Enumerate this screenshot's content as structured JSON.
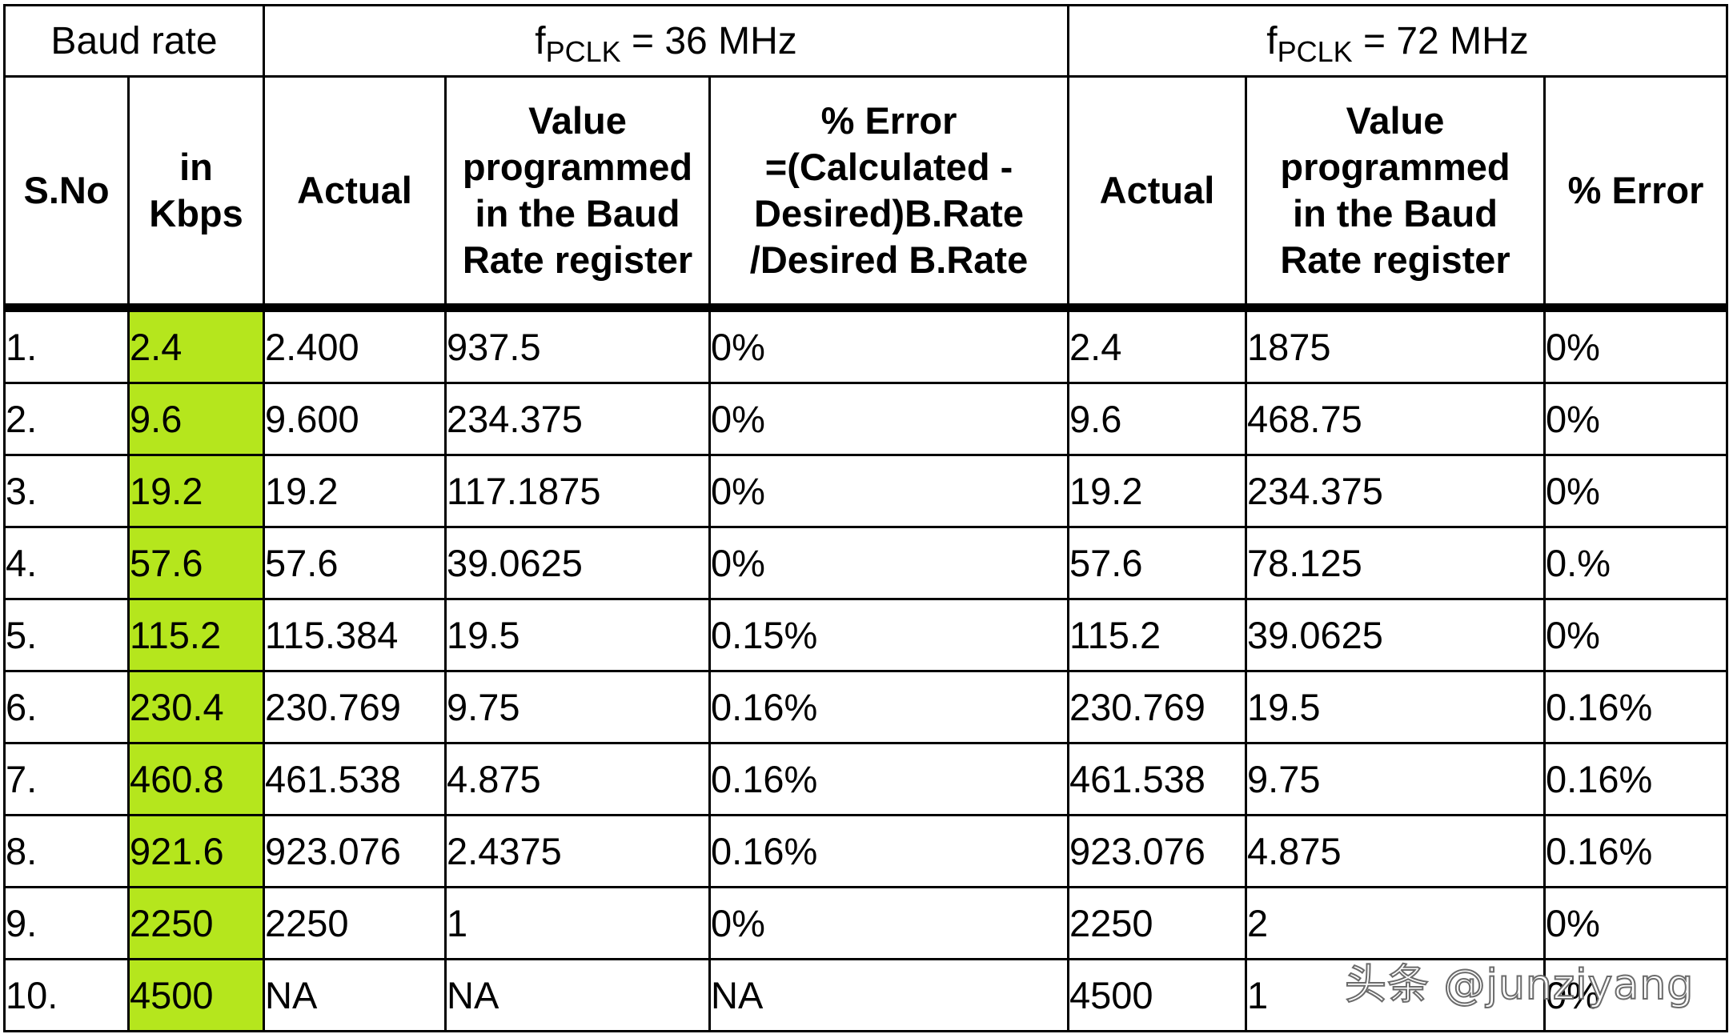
{
  "group_headers": {
    "baud_rate": "Baud rate",
    "f36_prefix": "f",
    "f36_sub": "PCLK",
    "f36_suffix": " = 36 MHz",
    "f72_prefix": "f",
    "f72_sub": "PCLK",
    "f72_suffix": " = 72 MHz"
  },
  "column_headers": {
    "sno": "S.No",
    "kbps_line1": "in",
    "kbps_line2": "Kbps",
    "actual36": "Actual",
    "value36_line1": "Value",
    "value36_line2": "programmed",
    "value36_line3": "in the Baud",
    "value36_line4": "Rate register",
    "error36_line1": "% Error",
    "error36_line2": "=(Calculated -",
    "error36_line3": "Desired)B.Rate",
    "error36_line4": "/Desired B.Rate",
    "actual72": "Actual",
    "value72_line1": "Value",
    "value72_line2": "programmed",
    "value72_line3": "in the Baud",
    "value72_line4": "Rate register",
    "error72": "% Error"
  },
  "rows": [
    {
      "sno": "1.",
      "kbps": "2.4",
      "actual36": "2.400",
      "value36": "937.5",
      "error36": "0%",
      "actual72": "2.4",
      "value72": "1875",
      "error72": "0%"
    },
    {
      "sno": "2.",
      "kbps": "9.6",
      "actual36": "9.600",
      "value36": "234.375",
      "error36": "0%",
      "actual72": "9.6",
      "value72": "468.75",
      "error72": "0%"
    },
    {
      "sno": "3.",
      "kbps": "19.2",
      "actual36": "19.2",
      "value36": "117.1875",
      "error36": "0%",
      "actual72": "19.2",
      "value72": "234.375",
      "error72": "0%"
    },
    {
      "sno": "4.",
      "kbps": "57.6",
      "actual36": "57.6",
      "value36": "39.0625",
      "error36": "0%",
      "actual72": "57.6",
      "value72": "78.125",
      "error72": "0.%"
    },
    {
      "sno": "5.",
      "kbps": "115.2",
      "actual36": "115.384",
      "value36": "19.5",
      "error36": "0.15%",
      "actual72": "115.2",
      "value72": "39.0625",
      "error72": "0%"
    },
    {
      "sno": "6.",
      "kbps": "230.4",
      "actual36": "230.769",
      "value36": "9.75",
      "error36": "0.16%",
      "actual72": "230.769",
      "value72": "19.5",
      "error72": "0.16%"
    },
    {
      "sno": "7.",
      "kbps": "460.8",
      "actual36": "461.538",
      "value36": "4.875",
      "error36": "0.16%",
      "actual72": "461.538",
      "value72": "9.75",
      "error72": "0.16%"
    },
    {
      "sno": "8.",
      "kbps": "921.6",
      "actual36": "923.076",
      "value36": "2.4375",
      "error36": "0.16%",
      "actual72": "923.076",
      "value72": "4.875",
      "error72": "0.16%"
    },
    {
      "sno": "9.",
      "kbps": "2250",
      "actual36": "2250",
      "value36": "1",
      "error36": "0%",
      "actual72": "2250",
      "value72": "2",
      "error72": "0%"
    },
    {
      "sno": "10.",
      "kbps": "4500",
      "actual36": "NA",
      "value36": "NA",
      "error36": "NA",
      "actual72": "4500",
      "value72": "1",
      "error72": "0%"
    }
  ],
  "colors": {
    "kbps_highlight": "#b5e61d",
    "border": "#000000"
  },
  "watermark": "头条 @junziyang"
}
